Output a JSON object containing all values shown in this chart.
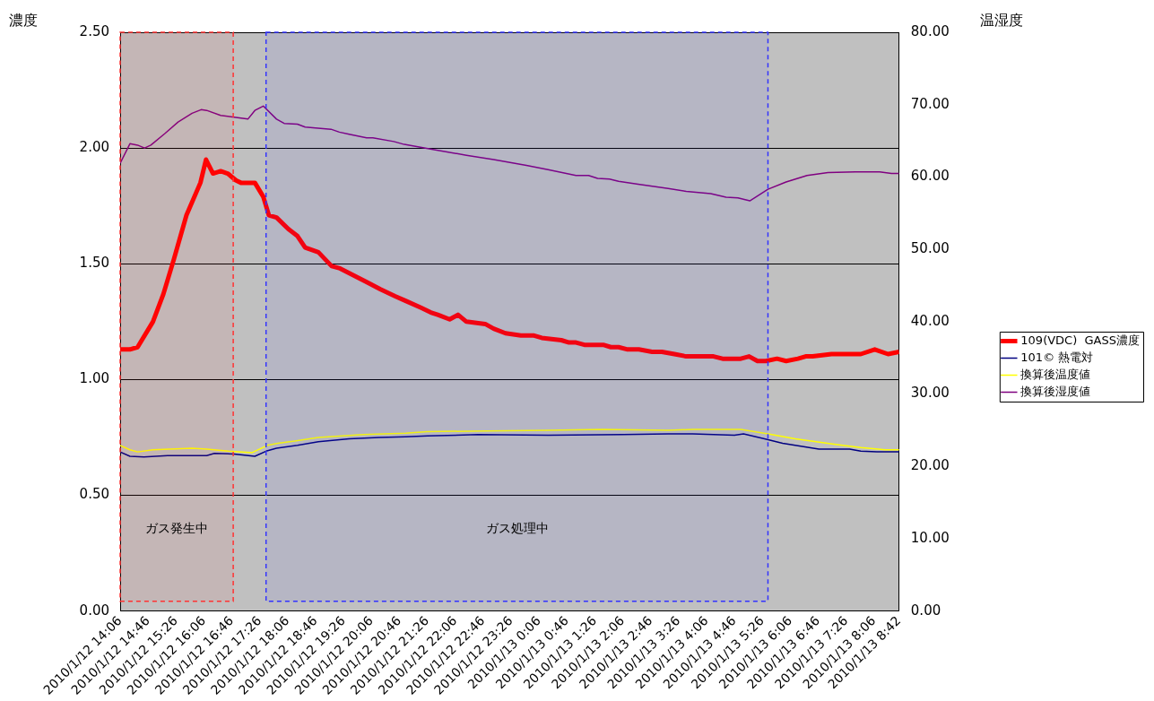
{
  "chart_data": {
    "type": "line",
    "ylabel": "濃度",
    "y2label": "温湿度",
    "xlim": [
      "2010-01-12T14:06",
      "2010-01-13T08:42"
    ],
    "xticks": [
      {
        "value": "2010-01-12T14:06",
        "label": "2010/1/12 14:06"
      },
      {
        "value": "2010-01-12T14:46",
        "label": "2010/1/12 14:46"
      },
      {
        "value": "2010-01-12T15:26",
        "label": "2010/1/12 15:26"
      },
      {
        "value": "2010-01-12T16:06",
        "label": "2010/1/12 16:06"
      },
      {
        "value": "2010-01-12T16:46",
        "label": "2010/1/12 16:46"
      },
      {
        "value": "2010-01-12T17:26",
        "label": "2010/1/12 17:26"
      },
      {
        "value": "2010-01-12T18:06",
        "label": "2010/1/12 18:06"
      },
      {
        "value": "2010-01-12T18:46",
        "label": "2010/1/12 18:46"
      },
      {
        "value": "2010-01-12T19:26",
        "label": "2010/1/12 19:26"
      },
      {
        "value": "2010-01-12T20:06",
        "label": "2010/1/12 20:06"
      },
      {
        "value": "2010-01-12T20:46",
        "label": "2010/1/12 20:46"
      },
      {
        "value": "2010-01-12T21:26",
        "label": "2010/1/12 21:26"
      },
      {
        "value": "2010-01-12T22:06",
        "label": "2010/1/12 22:06"
      },
      {
        "value": "2010-01-12T22:46",
        "label": "2010/1/12 22:46"
      },
      {
        "value": "2010-01-12T23:26",
        "label": "2010/1/12 23:26"
      },
      {
        "value": "2010-01-13T00:06",
        "label": "2010/1/13 0:06"
      },
      {
        "value": "2010-01-13T00:46",
        "label": "2010/1/13 0:46"
      },
      {
        "value": "2010-01-13T01:26",
        "label": "2010/1/13 1:26"
      },
      {
        "value": "2010-01-13T02:06",
        "label": "2010/1/13 2:06"
      },
      {
        "value": "2010-01-13T02:46",
        "label": "2010/1/13 2:46"
      },
      {
        "value": "2010-01-13T03:26",
        "label": "2010/1/13 3:26"
      },
      {
        "value": "2010-01-13T04:06",
        "label": "2010/1/13 4:06"
      },
      {
        "value": "2010-01-13T04:46",
        "label": "2010/1/13 4:46"
      },
      {
        "value": "2010-01-13T05:26",
        "label": "2010/1/13 5:26"
      },
      {
        "value": "2010-01-13T06:06",
        "label": "2010/1/13 6:06"
      },
      {
        "value": "2010-01-13T06:46",
        "label": "2010/1/13 6:46"
      },
      {
        "value": "2010-01-13T07:26",
        "label": "2010/1/13 7:26"
      },
      {
        "value": "2010-01-13T08:06",
        "label": "2010/1/13 8:06"
      },
      {
        "value": "2010-01-13T08:42",
        "label": "2010/1/13 8:42"
      }
    ],
    "ylim": [
      0,
      2.5
    ],
    "yticks": [
      {
        "value": 0,
        "label": "0.00"
      },
      {
        "value": 0.5,
        "label": "0.50"
      },
      {
        "value": 1,
        "label": "1.00"
      },
      {
        "value": 1.5,
        "label": "1.50"
      },
      {
        "value": 2,
        "label": "2.00"
      },
      {
        "value": 2.5,
        "label": "2.50"
      }
    ],
    "y2lim": [
      0,
      80
    ],
    "y2ticks": [
      {
        "value": 0,
        "label": "0.00"
      },
      {
        "value": 10,
        "label": "10.00"
      },
      {
        "value": 20,
        "label": "20.00"
      },
      {
        "value": 30,
        "label": "30.00"
      },
      {
        "value": 40,
        "label": "40.00"
      },
      {
        "value": 50,
        "label": "50.00"
      },
      {
        "value": 60,
        "label": "60.00"
      },
      {
        "value": 70,
        "label": "70.00"
      },
      {
        "value": 80,
        "label": "80.00"
      }
    ],
    "grid": "y",
    "legend": "right",
    "marker": "none",
    "line_style": "solid",
    "bands": [
      {
        "axis": "x",
        "from": "2010-01-12T14:06",
        "to": "2010-01-12T16:48",
        "label": "ガス発生中",
        "color": "#ff3333"
      },
      {
        "axis": "x",
        "from": "2010-01-12T17:35",
        "to": "2010-01-13T05:34",
        "label": "ガス処理中",
        "color": "#3333ff"
      }
    ],
    "series": [
      {
        "name": "109(VDC)  GASS濃度",
        "color": "#ff0000",
        "x": [
          "2010-01-12T14:06",
          "2010-01-12T14:20",
          "2010-01-12T14:31",
          "2010-01-12T14:53",
          "2010-01-12T15:08",
          "2010-01-12T15:23",
          "2010-01-12T15:41",
          "2010-01-12T16:01",
          "2010-01-12T16:09",
          "2010-01-12T16:19",
          "2010-01-12T16:30",
          "2010-01-12T16:40",
          "2010-01-12T16:52",
          "2010-01-12T16:59",
          "2010-01-12T17:19",
          "2010-01-12T17:31",
          "2010-01-12T17:39",
          "2010-01-12T17:50",
          "2010-01-12T18:07",
          "2010-01-12T18:20",
          "2010-01-12T18:31",
          "2010-01-12T18:50",
          "2010-01-12T19:09",
          "2010-01-12T19:21",
          "2010-01-12T20:00",
          "2010-01-12T20:19",
          "2010-01-12T20:40",
          "2010-01-12T20:55",
          "2010-01-12T21:17",
          "2010-01-12T21:31",
          "2010-01-12T21:41",
          "2010-01-12T21:58",
          "2010-01-12T22:10",
          "2010-01-12T22:22",
          "2010-01-12T22:49",
          "2010-01-12T23:01",
          "2010-01-12T23:18",
          "2010-01-12T23:40",
          "2010-01-12T23:59",
          "2010-01-13T00:10",
          "2010-01-13T00:38",
          "2010-01-13T00:49",
          "2010-01-13T00:59",
          "2010-01-13T01:11",
          "2010-01-13T01:38",
          "2010-01-13T01:49",
          "2010-01-13T02:00",
          "2010-01-13T02:13",
          "2010-01-13T02:29",
          "2010-01-13T02:48",
          "2010-01-13T03:02",
          "2010-01-13T03:20",
          "2010-01-13T03:37",
          "2010-01-13T04:16",
          "2010-01-13T04:29",
          "2010-01-13T04:55",
          "2010-01-13T05:07",
          "2010-01-13T05:19",
          "2010-01-13T05:31",
          "2010-01-13T05:47",
          "2010-01-13T06:00",
          "2010-01-13T06:17",
          "2010-01-13T06:28",
          "2010-01-13T06:38",
          "2010-01-13T07:05",
          "2010-01-13T07:22",
          "2010-01-13T07:47",
          "2010-01-13T08:07",
          "2010-01-13T08:26",
          "2010-01-13T08:42"
        ],
        "values": [
          1.13,
          1.13,
          1.14,
          1.25,
          1.37,
          1.52,
          1.71,
          1.85,
          1.95,
          1.89,
          1.9,
          1.89,
          1.86,
          1.85,
          1.85,
          1.79,
          1.71,
          1.7,
          1.65,
          1.62,
          1.57,
          1.55,
          1.49,
          1.48,
          1.42,
          1.39,
          1.36,
          1.34,
          1.31,
          1.29,
          1.28,
          1.26,
          1.28,
          1.25,
          1.24,
          1.22,
          1.2,
          1.19,
          1.19,
          1.18,
          1.17,
          1.16,
          1.16,
          1.15,
          1.15,
          1.14,
          1.14,
          1.13,
          1.13,
          1.12,
          1.12,
          1.11,
          1.1,
          1.1,
          1.09,
          1.09,
          1.1,
          1.08,
          1.08,
          1.09,
          1.08,
          1.09,
          1.1,
          1.1,
          1.11,
          1.11,
          1.11,
          1.13,
          1.11,
          1.12
        ]
      },
      {
        "name": "101© 熱電対",
        "color": "#000080",
        "axis": "y2",
        "x": [
          "2010-01-12T14:06",
          "2010-01-12T14:20",
          "2010-01-12T14:40",
          "2010-01-12T15:14",
          "2010-01-12T15:58",
          "2010-01-12T16:10",
          "2010-01-12T16:21",
          "2010-01-12T16:49",
          "2010-01-12T17:19",
          "2010-01-12T17:35",
          "2010-01-12T17:50",
          "2010-01-12T18:20",
          "2010-01-12T18:50",
          "2010-01-12T19:34",
          "2010-01-12T20:17",
          "2010-01-12T20:55",
          "2010-01-12T21:26",
          "2010-01-12T22:39",
          "2010-01-13T00:19",
          "2010-01-13T02:07",
          "2010-01-13T03:11",
          "2010-01-13T03:46",
          "2010-01-13T04:46",
          "2010-01-13T04:59",
          "2010-01-13T05:29",
          "2010-01-13T05:55",
          "2010-01-13T06:21",
          "2010-01-13T06:47",
          "2010-01-13T07:31",
          "2010-01-13T07:47",
          "2010-01-13T08:10",
          "2010-01-13T08:42"
        ],
        "values": [
          22.0,
          21.4,
          21.3,
          21.5,
          21.5,
          21.5,
          21.8,
          21.7,
          21.4,
          22.1,
          22.5,
          22.9,
          23.4,
          23.8,
          24.0,
          24.1,
          24.2,
          24.4,
          24.3,
          24.4,
          24.5,
          24.5,
          24.3,
          24.5,
          23.8,
          23.2,
          22.8,
          22.4,
          22.4,
          22.1,
          22.0,
          22.0
        ]
      },
      {
        "name": "換算後温度値",
        "color": "#ffff00",
        "axis": "y2",
        "x": [
          "2010-01-12T14:06",
          "2010-01-12T14:20",
          "2010-01-12T14:31",
          "2010-01-12T14:53",
          "2010-01-12T15:49",
          "2010-01-12T16:10",
          "2010-01-12T16:41",
          "2010-01-12T17:15",
          "2010-01-12T17:37",
          "2010-01-12T17:52",
          "2010-01-12T18:16",
          "2010-01-12T18:50",
          "2010-01-12T19:55",
          "2010-01-12T20:55",
          "2010-01-12T21:26",
          "2010-01-12T22:52",
          "2010-01-13T00:19",
          "2010-01-13T01:37",
          "2010-01-13T03:11",
          "2010-01-13T03:46",
          "2010-01-13T04:55",
          "2010-01-13T05:34",
          "2010-01-13T06:13",
          "2010-01-13T07:13",
          "2010-01-13T07:47",
          "2010-01-13T08:22",
          "2010-01-13T08:42"
        ],
        "values": [
          22.9,
          22.3,
          22.0,
          22.3,
          22.5,
          22.4,
          22.1,
          21.9,
          22.9,
          23.2,
          23.5,
          24.0,
          24.4,
          24.6,
          24.8,
          24.9,
          25.0,
          25.1,
          25.0,
          25.1,
          25.1,
          24.5,
          23.8,
          23.0,
          22.6,
          22.3,
          22.3
        ]
      },
      {
        "name": "換算後湿度値",
        "color": "#800080",
        "axis": "y2",
        "x": [
          "2010-01-12T14:06",
          "2010-01-12T14:20",
          "2010-01-12T14:31",
          "2010-01-12T14:41",
          "2010-01-12T14:50",
          "2010-01-12T15:10",
          "2010-01-12T15:29",
          "2010-01-12T15:49",
          "2010-01-12T16:02",
          "2010-01-12T16:10",
          "2010-01-12T16:30",
          "2010-01-12T16:47",
          "2010-01-12T17:09",
          "2010-01-12T17:19",
          "2010-01-12T17:31",
          "2010-01-12T17:50",
          "2010-01-12T18:01",
          "2010-01-12T18:20",
          "2010-01-12T18:31",
          "2010-01-12T19:08",
          "2010-01-12T19:20",
          "2010-01-12T19:34",
          "2010-01-12T19:59",
          "2010-01-12T20:08",
          "2010-01-12T20:38",
          "2010-01-12T20:53",
          "2010-01-12T21:34",
          "2010-01-12T22:22",
          "2010-01-12T23:01",
          "2010-01-12T23:48",
          "2010-01-13T00:19",
          "2010-01-13T00:59",
          "2010-01-13T01:17",
          "2010-01-13T01:30",
          "2010-01-13T01:47",
          "2010-01-13T02:00",
          "2010-01-13T02:28",
          "2010-01-13T03:11",
          "2010-01-13T03:37",
          "2010-01-13T04:12",
          "2010-01-13T04:34",
          "2010-01-13T04:51",
          "2010-01-13T05:08",
          "2010-01-13T05:34",
          "2010-01-13T06:00",
          "2010-01-13T06:30",
          "2010-01-13T07:00",
          "2010-01-13T07:39",
          "2010-01-13T08:14",
          "2010-01-13T08:31",
          "2010-01-13T08:42"
        ],
        "values": [
          61.9,
          64.6,
          64.4,
          64.0,
          64.4,
          66.0,
          67.6,
          68.8,
          69.3,
          69.2,
          68.5,
          68.3,
          68.0,
          69.2,
          69.8,
          68.0,
          67.4,
          67.3,
          66.9,
          66.6,
          66.2,
          65.9,
          65.4,
          65.4,
          64.9,
          64.5,
          63.8,
          63.0,
          62.4,
          61.6,
          61.0,
          60.2,
          60.2,
          59.8,
          59.7,
          59.4,
          59.0,
          58.4,
          58.0,
          57.7,
          57.2,
          57.1,
          56.7,
          58.3,
          59.3,
          60.2,
          60.6,
          60.7,
          60.7,
          60.5,
          60.5
        ]
      }
    ]
  }
}
